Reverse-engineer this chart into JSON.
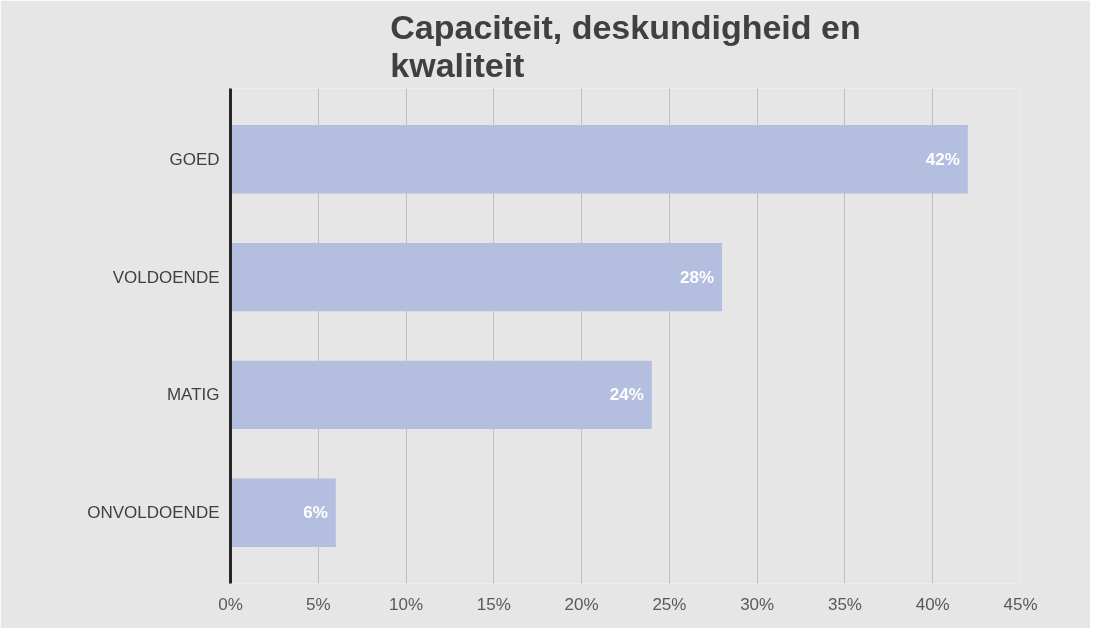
{
  "chart_data": {
    "type": "bar",
    "orientation": "horizontal",
    "title": "Capaciteit, deskundigheid en kwaliteit",
    "categories": [
      "GOED",
      "VOLDOENDE",
      "MATIG",
      "ONVOLDOENDE"
    ],
    "values": [
      42,
      28,
      24,
      6
    ],
    "value_labels": [
      "42%",
      "28%",
      "24%",
      "6%"
    ],
    "color": "#b4bfe0",
    "xlim": [
      0,
      45
    ],
    "xticks": [
      {
        "value": 0,
        "label": "0%"
      },
      {
        "value": 5,
        "label": "5%"
      },
      {
        "value": 10,
        "label": "10%"
      },
      {
        "value": 15,
        "label": "15%"
      },
      {
        "value": 20,
        "label": "20%"
      },
      {
        "value": 25,
        "label": "25%"
      },
      {
        "value": 30,
        "label": "30%"
      },
      {
        "value": 35,
        "label": "35%"
      },
      {
        "value": 40,
        "label": "40%"
      },
      {
        "value": 45,
        "label": "45%"
      }
    ],
    "grid": "x"
  }
}
